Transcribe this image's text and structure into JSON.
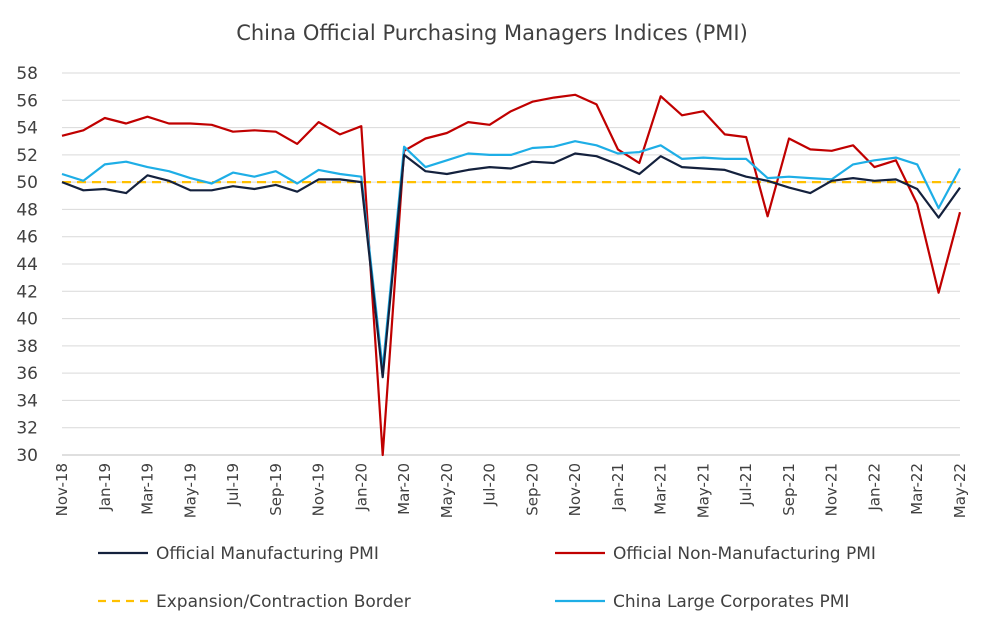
{
  "chart_data": {
    "type": "line",
    "title": "China Official Purchasing Managers Indices (PMI)",
    "xlabel": "",
    "ylabel": "",
    "ylim": [
      30,
      58
    ],
    "y_ticks": [
      30,
      32,
      34,
      36,
      38,
      40,
      42,
      44,
      46,
      48,
      50,
      52,
      54,
      56,
      58
    ],
    "grid": "horizontal",
    "legend_position": "bottom",
    "x": [
      "Nov-18",
      "Dec-18",
      "Jan-19",
      "Feb-19",
      "Mar-19",
      "Apr-19",
      "May-19",
      "Jun-19",
      "Jul-19",
      "Aug-19",
      "Sep-19",
      "Oct-19",
      "Nov-19",
      "Dec-19",
      "Jan-20",
      "Feb-20",
      "Mar-20",
      "Apr-20",
      "May-20",
      "Jun-20",
      "Jul-20",
      "Aug-20",
      "Sep-20",
      "Oct-20",
      "Nov-20",
      "Dec-20",
      "Jan-21",
      "Feb-21",
      "Mar-21",
      "Apr-21",
      "May-21",
      "Jun-21",
      "Jul-21",
      "Aug-21",
      "Sep-21",
      "Oct-21",
      "Nov-21",
      "Dec-21",
      "Jan-22",
      "Feb-22",
      "Mar-22",
      "Apr-22",
      "May-22"
    ],
    "x_tick_labels": [
      "Nov-18",
      "Jan-19",
      "Mar-19",
      "May-19",
      "Jul-19",
      "Sep-19",
      "Nov-19",
      "Jan-20",
      "Mar-20",
      "May-20",
      "Jul-20",
      "Sep-20",
      "Nov-20",
      "Jan-21",
      "Mar-21",
      "May-21",
      "Jul-21",
      "Sep-21",
      "Nov-21",
      "Jan-22",
      "Mar-22",
      "May-22"
    ],
    "series": [
      {
        "name": "Official Manufacturing PMI",
        "color": "#14213d",
        "style": "solid",
        "values": [
          50.0,
          49.4,
          49.5,
          49.2,
          50.5,
          50.1,
          49.4,
          49.4,
          49.7,
          49.5,
          49.8,
          49.3,
          50.2,
          50.2,
          50.0,
          35.7,
          52.0,
          50.8,
          50.6,
          50.9,
          51.1,
          51.0,
          51.5,
          51.4,
          52.1,
          51.9,
          51.3,
          50.6,
          51.9,
          51.1,
          51.0,
          50.9,
          50.4,
          50.1,
          49.6,
          49.2,
          50.1,
          50.3,
          50.1,
          50.2,
          49.5,
          47.4,
          49.6
        ]
      },
      {
        "name": "Official Non-Manufacturing PMI",
        "color": "#c00000",
        "style": "solid",
        "values": [
          53.4,
          53.8,
          54.7,
          54.3,
          54.8,
          54.3,
          54.3,
          54.2,
          53.7,
          53.8,
          53.7,
          52.8,
          54.4,
          53.5,
          54.1,
          29.6,
          52.3,
          53.2,
          53.6,
          54.4,
          54.2,
          55.2,
          55.9,
          56.2,
          56.4,
          55.7,
          52.4,
          51.4,
          56.3,
          54.9,
          55.2,
          53.5,
          53.3,
          47.5,
          53.2,
          52.4,
          52.3,
          52.7,
          51.1,
          51.6,
          48.4,
          41.9,
          47.8
        ]
      },
      {
        "name": "China Large Corporates PMI",
        "color": "#1eaee6",
        "style": "solid",
        "values": [
          50.6,
          50.1,
          51.3,
          51.5,
          51.1,
          50.8,
          50.3,
          49.9,
          50.7,
          50.4,
          50.8,
          49.9,
          50.9,
          50.6,
          50.4,
          36.3,
          52.6,
          51.1,
          51.6,
          52.1,
          52.0,
          52.0,
          52.5,
          52.6,
          53.0,
          52.7,
          52.1,
          52.2,
          52.7,
          51.7,
          51.8,
          51.7,
          51.7,
          50.3,
          50.4,
          50.3,
          50.2,
          51.3,
          51.6,
          51.8,
          51.3,
          48.1,
          51.0
        ]
      },
      {
        "name": "Expansion/Contraction Border",
        "color": "#ffc000",
        "style": "dashed",
        "values": [
          50,
          50,
          50,
          50,
          50,
          50,
          50,
          50,
          50,
          50,
          50,
          50,
          50,
          50,
          50,
          50,
          50,
          50,
          50,
          50,
          50,
          50,
          50,
          50,
          50,
          50,
          50,
          50,
          50,
          50,
          50,
          50,
          50,
          50,
          50,
          50,
          50,
          50,
          50,
          50,
          50,
          50,
          50
        ]
      }
    ]
  },
  "legend": [
    {
      "label": "Official Manufacturing PMI",
      "color": "#14213d",
      "style": "solid"
    },
    {
      "label": "Official Non-Manufacturing PMI",
      "color": "#c00000",
      "style": "solid"
    },
    {
      "label": "Expansion/Contraction Border",
      "color": "#ffc000",
      "style": "dashed"
    },
    {
      "label": "China Large Corporates PMI",
      "color": "#1eaee6",
      "style": "solid"
    }
  ]
}
